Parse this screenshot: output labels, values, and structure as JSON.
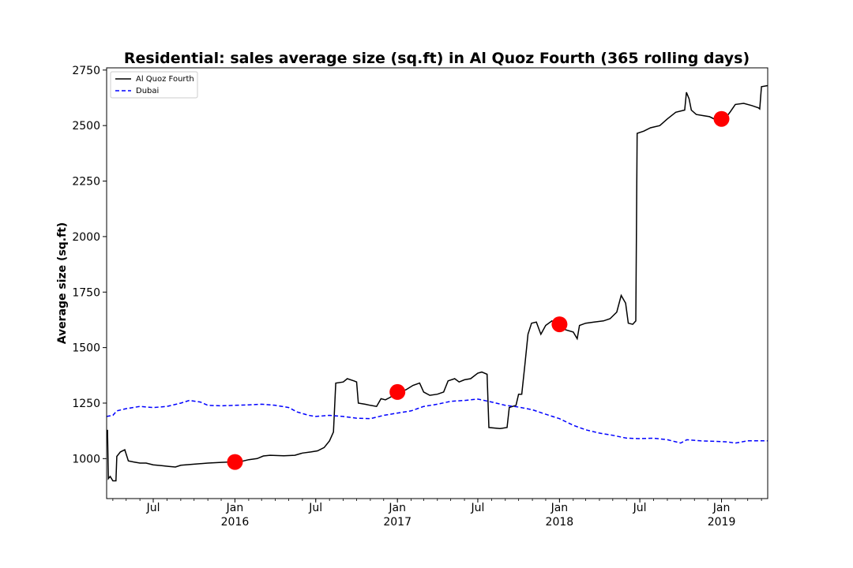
{
  "chart_data": {
    "type": "line",
    "title": "Residential: sales average size (sq.ft) in Al Quoz Fourth (365 rolling days)",
    "xlabel": "",
    "ylabel": "Average size (sq.ft)",
    "ylim": [
      820,
      2760
    ],
    "xlim": [
      "2015-03-18",
      "2019-04-15"
    ],
    "y_ticks": [
      1000,
      1250,
      1500,
      1750,
      2000,
      2250,
      2500,
      2750
    ],
    "x_ticks": [
      {
        "date": "2015-07-01",
        "label": "Jul",
        "sublabel": ""
      },
      {
        "date": "2016-01-01",
        "label": "Jan",
        "sublabel": "2016"
      },
      {
        "date": "2016-07-01",
        "label": "Jul",
        "sublabel": ""
      },
      {
        "date": "2017-01-01",
        "label": "Jan",
        "sublabel": "2017"
      },
      {
        "date": "2017-07-01",
        "label": "Jul",
        "sublabel": ""
      },
      {
        "date": "2018-01-01",
        "label": "Jan",
        "sublabel": "2018"
      },
      {
        "date": "2018-07-01",
        "label": "Jul",
        "sublabel": ""
      },
      {
        "date": "2019-01-01",
        "label": "Jan",
        "sublabel": "2019"
      }
    ],
    "grid": false,
    "legend_position": "top-left",
    "series": [
      {
        "name": "Al Quoz Fourth",
        "color": "#000000",
        "style": "solid",
        "points": [
          [
            "2015-03-20",
            1130
          ],
          [
            "2015-03-22",
            910
          ],
          [
            "2015-03-26",
            920
          ],
          [
            "2015-04-01",
            900
          ],
          [
            "2015-04-08",
            900
          ],
          [
            "2015-04-10",
            1010
          ],
          [
            "2015-04-18",
            1030
          ],
          [
            "2015-04-28",
            1040
          ],
          [
            "2015-05-06",
            990
          ],
          [
            "2015-05-18",
            985
          ],
          [
            "2015-06-01",
            980
          ],
          [
            "2015-06-15",
            980
          ],
          [
            "2015-07-01",
            972
          ],
          [
            "2015-07-20",
            968
          ],
          [
            "2015-08-05",
            965
          ],
          [
            "2015-08-20",
            962
          ],
          [
            "2015-09-01",
            970
          ],
          [
            "2015-10-01",
            975
          ],
          [
            "2015-11-01",
            980
          ],
          [
            "2015-12-01",
            983
          ],
          [
            "2015-12-20",
            985
          ],
          [
            "2016-01-10",
            985
          ],
          [
            "2016-02-01",
            995
          ],
          [
            "2016-02-20",
            1000
          ],
          [
            "2016-03-05",
            1012
          ],
          [
            "2016-03-20",
            1015
          ],
          [
            "2016-04-20",
            1013
          ],
          [
            "2016-05-15",
            1015
          ],
          [
            "2016-06-01",
            1025
          ],
          [
            "2016-06-20",
            1030
          ],
          [
            "2016-07-05",
            1035
          ],
          [
            "2016-07-20",
            1050
          ],
          [
            "2016-08-01",
            1080
          ],
          [
            "2016-08-10",
            1120
          ],
          [
            "2016-08-15",
            1340
          ],
          [
            "2016-09-01",
            1345
          ],
          [
            "2016-09-10",
            1360
          ],
          [
            "2016-09-25",
            1350
          ],
          [
            "2016-10-01",
            1345
          ],
          [
            "2016-10-05",
            1250
          ],
          [
            "2016-10-20",
            1245
          ],
          [
            "2016-11-01",
            1240
          ],
          [
            "2016-11-15",
            1235
          ],
          [
            "2016-11-25",
            1270
          ],
          [
            "2016-12-05",
            1265
          ],
          [
            "2016-12-15",
            1275
          ],
          [
            "2017-01-05",
            1300
          ],
          [
            "2017-01-20",
            1310
          ],
          [
            "2017-02-05",
            1330
          ],
          [
            "2017-02-20",
            1340
          ],
          [
            "2017-03-01",
            1300
          ],
          [
            "2017-03-15",
            1285
          ],
          [
            "2017-04-01",
            1290
          ],
          [
            "2017-04-15",
            1300
          ],
          [
            "2017-04-25",
            1350
          ],
          [
            "2017-05-10",
            1360
          ],
          [
            "2017-05-20",
            1345
          ],
          [
            "2017-06-01",
            1355
          ],
          [
            "2017-06-15",
            1360
          ],
          [
            "2017-07-01",
            1385
          ],
          [
            "2017-07-10",
            1390
          ],
          [
            "2017-07-22",
            1380
          ],
          [
            "2017-07-26",
            1140
          ],
          [
            "2017-08-20",
            1135
          ],
          [
            "2017-09-05",
            1140
          ],
          [
            "2017-09-10",
            1230
          ],
          [
            "2017-09-25",
            1240
          ],
          [
            "2017-10-01",
            1290
          ],
          [
            "2017-10-08",
            1290
          ],
          [
            "2017-10-15",
            1420
          ],
          [
            "2017-10-22",
            1560
          ],
          [
            "2017-10-30",
            1610
          ],
          [
            "2017-11-10",
            1615
          ],
          [
            "2017-11-20",
            1560
          ],
          [
            "2017-12-01",
            1600
          ],
          [
            "2017-12-15",
            1620
          ],
          [
            "2018-01-01",
            1600
          ],
          [
            "2018-01-15",
            1580
          ],
          [
            "2018-02-01",
            1570
          ],
          [
            "2018-02-10",
            1540
          ],
          [
            "2018-02-15",
            1600
          ],
          [
            "2018-03-01",
            1610
          ],
          [
            "2018-03-20",
            1615
          ],
          [
            "2018-04-10",
            1620
          ],
          [
            "2018-04-25",
            1630
          ],
          [
            "2018-05-10",
            1660
          ],
          [
            "2018-05-20",
            1735
          ],
          [
            "2018-05-30",
            1700
          ],
          [
            "2018-06-05",
            1610
          ],
          [
            "2018-06-15",
            1605
          ],
          [
            "2018-06-22",
            1620
          ],
          [
            "2018-06-25",
            2465
          ],
          [
            "2018-07-10",
            2475
          ],
          [
            "2018-07-25",
            2490
          ],
          [
            "2018-08-15",
            2500
          ],
          [
            "2018-09-01",
            2530
          ],
          [
            "2018-09-20",
            2560
          ],
          [
            "2018-10-10",
            2570
          ],
          [
            "2018-10-14",
            2650
          ],
          [
            "2018-10-20",
            2620
          ],
          [
            "2018-10-25",
            2570
          ],
          [
            "2018-11-05",
            2550
          ],
          [
            "2018-11-20",
            2545
          ],
          [
            "2018-12-05",
            2540
          ],
          [
            "2018-12-20",
            2525
          ],
          [
            "2019-01-05",
            2520
          ],
          [
            "2019-01-20",
            2560
          ],
          [
            "2019-02-01",
            2595
          ],
          [
            "2019-02-20",
            2600
          ],
          [
            "2019-03-10",
            2590
          ],
          [
            "2019-03-25",
            2580
          ],
          [
            "2019-03-28",
            2575
          ],
          [
            "2019-04-01",
            2675
          ],
          [
            "2019-04-15",
            2680
          ]
        ]
      },
      {
        "name": "Dubai",
        "color": "#0000ff",
        "style": "dashed",
        "points": [
          [
            "2015-03-18",
            1190
          ],
          [
            "2015-04-01",
            1195
          ],
          [
            "2015-04-10",
            1215
          ],
          [
            "2015-05-01",
            1225
          ],
          [
            "2015-06-01",
            1235
          ],
          [
            "2015-07-01",
            1230
          ],
          [
            "2015-08-01",
            1235
          ],
          [
            "2015-09-01",
            1250
          ],
          [
            "2015-09-20",
            1262
          ],
          [
            "2015-10-15",
            1255
          ],
          [
            "2015-11-01",
            1240
          ],
          [
            "2015-12-01",
            1238
          ],
          [
            "2016-01-01",
            1240
          ],
          [
            "2016-02-01",
            1242
          ],
          [
            "2016-03-01",
            1245
          ],
          [
            "2016-04-01",
            1240
          ],
          [
            "2016-05-01",
            1230
          ],
          [
            "2016-05-20",
            1210
          ],
          [
            "2016-06-15",
            1195
          ],
          [
            "2016-07-01",
            1190
          ],
          [
            "2016-08-01",
            1195
          ],
          [
            "2016-09-01",
            1190
          ],
          [
            "2016-10-01",
            1182
          ],
          [
            "2016-11-01",
            1180
          ],
          [
            "2016-12-01",
            1195
          ],
          [
            "2017-01-01",
            1205
          ],
          [
            "2017-02-01",
            1215
          ],
          [
            "2017-03-01",
            1235
          ],
          [
            "2017-04-01",
            1245
          ],
          [
            "2017-05-01",
            1258
          ],
          [
            "2017-06-01",
            1262
          ],
          [
            "2017-07-01",
            1268
          ],
          [
            "2017-08-01",
            1255
          ],
          [
            "2017-09-01",
            1240
          ],
          [
            "2017-10-01",
            1232
          ],
          [
            "2017-11-01",
            1220
          ],
          [
            "2017-12-01",
            1200
          ],
          [
            "2018-01-01",
            1180
          ],
          [
            "2018-02-01",
            1150
          ],
          [
            "2018-03-01",
            1130
          ],
          [
            "2018-04-01",
            1115
          ],
          [
            "2018-05-01",
            1105
          ],
          [
            "2018-06-01",
            1092
          ],
          [
            "2018-07-01",
            1090
          ],
          [
            "2018-08-01",
            1092
          ],
          [
            "2018-09-01",
            1085
          ],
          [
            "2018-10-01",
            1070
          ],
          [
            "2018-10-15",
            1085
          ],
          [
            "2018-11-15",
            1080
          ],
          [
            "2018-12-15",
            1078
          ],
          [
            "2019-01-15",
            1075
          ],
          [
            "2019-02-01",
            1070
          ],
          [
            "2019-03-01",
            1080
          ],
          [
            "2019-04-15",
            1080
          ]
        ]
      }
    ],
    "markers": {
      "color": "#ff0000",
      "points": [
        [
          "2016-01-01",
          985
        ],
        [
          "2017-01-01",
          1300
        ],
        [
          "2018-01-01",
          1605
        ],
        [
          "2019-01-01",
          2530
        ]
      ]
    }
  }
}
